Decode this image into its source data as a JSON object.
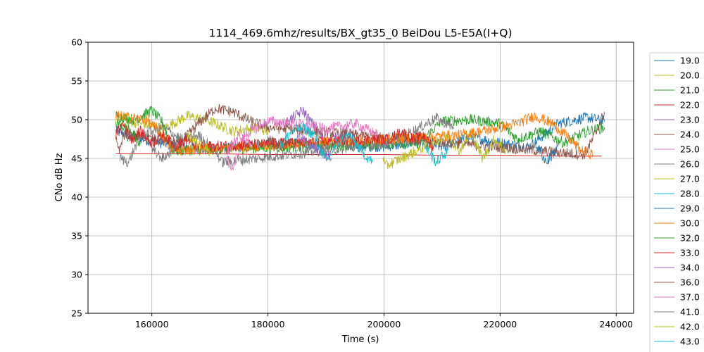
{
  "chart_data": {
    "type": "line",
    "title": "1114_469.6mhz/results/BX_gt35_0 BeiDou L5-E5A(I+Q)",
    "xlabel": "Time (s)",
    "ylabel": "CNo dB Hz",
    "xlim": [
      149000,
      243000
    ],
    "ylim": [
      25,
      60
    ],
    "xticks": [
      160000,
      180000,
      200000,
      220000,
      240000
    ],
    "yticks": [
      25,
      30,
      35,
      40,
      45,
      50,
      55,
      60
    ],
    "grid": true,
    "legend_position": "right",
    "series": [
      {
        "name": "19.0",
        "color": "#1f77b4",
        "x": [
          153800,
          160000,
          170000,
          180000,
          190000,
          200000,
          205000,
          210000,
          215000,
          220000,
          225000,
          230000,
          235000,
          238000
        ],
        "y": [
          48.5,
          47.2,
          46.0,
          47.0,
          46.8,
          46.5,
          47.0,
          46.5,
          47.8,
          47.0,
          46.5,
          49.5,
          50.3,
          49.8
        ]
      },
      {
        "name": "20.0",
        "color": "#bcbd22",
        "x": [
          153800,
          158000,
          162000,
          166000,
          170000,
          174000,
          178000,
          180000
        ],
        "y": [
          50.2,
          49.5,
          48.8,
          50.5,
          49.8,
          48.5,
          49.0,
          48.5
        ]
      },
      {
        "name": "21.0",
        "color": "#2ca02c",
        "x": [
          153800,
          157000,
          160000,
          162000,
          163500,
          206000,
          210000,
          215000,
          220000,
          223000,
          227000,
          231000,
          235000,
          238000
        ],
        "y": [
          50.5,
          50.0,
          51.2,
          49.5,
          46.0,
          47.0,
          49.8,
          50.0,
          49.5,
          47.5,
          48.5,
          47.0,
          48.5,
          49.0
        ]
      },
      {
        "name": "22.0",
        "color": "#d62728",
        "x": [
          153800,
          160000,
          170000,
          180000,
          190000,
          200000,
          210000,
          220000,
          230000,
          237500
        ],
        "y": [
          45.6,
          45.6,
          45.6,
          45.5,
          45.5,
          45.5,
          45.4,
          45.4,
          45.3,
          45.3
        ]
      },
      {
        "name": "23.0",
        "color": "#9467bd",
        "x": [
          183000,
          186000,
          190000,
          194000,
          196000
        ],
        "y": [
          49.5,
          51.2,
          47.0,
          48.5,
          46.0
        ]
      },
      {
        "name": "24.0",
        "color": "#8c564b",
        "x": [
          153800,
          154500,
          155000,
          165000,
          168000,
          171000,
          174000,
          177000,
          180000,
          234500,
          236000,
          238000
        ],
        "y": [
          47.5,
          46.0,
          48.0,
          47.0,
          49.5,
          51.5,
          51.0,
          49.8,
          49.0,
          45.5,
          47.5,
          51.0
        ]
      },
      {
        "name": "25.0",
        "color": "#e377c2",
        "x": [
          172500,
          174000,
          176000,
          180000,
          185000,
          190000,
          195000,
          199000
        ],
        "y": [
          45.0,
          43.8,
          48.0,
          49.8,
          49.5,
          48.8,
          49.5,
          48.0
        ]
      },
      {
        "name": "26.0",
        "color": "#7f7f7f",
        "x": [
          154500,
          156000,
          158000,
          162000,
          165000,
          168000,
          171000,
          172000,
          201000,
          205000,
          209000,
          212000
        ],
        "y": [
          45.0,
          44.5,
          48.0,
          49.0,
          47.5,
          48.0,
          46.0,
          44.5,
          47.0,
          48.5,
          50.2,
          49.0
        ]
      },
      {
        "name": "27.0",
        "color": "#bcbd22",
        "x": [
          199800,
          200200,
          211000,
          213000,
          215000,
          217000,
          219000,
          221000
        ],
        "y": [
          45.5,
          44.0,
          48.0,
          46.0,
          48.5,
          45.0,
          47.5,
          46.0
        ]
      },
      {
        "name": "28.0",
        "color": "#17becf",
        "x": [
          207000,
          209000,
          211000
        ],
        "y": [
          46.5,
          44.5,
          46.0
        ]
      },
      {
        "name": "29.0",
        "color": "#1f77b4",
        "x": [
          226000,
          228000,
          230000
        ],
        "y": [
          47.0,
          44.5,
          46.5
        ]
      },
      {
        "name": "30.0",
        "color": "#ff7f0e",
        "x": [
          153800,
          156000,
          159000,
          162000,
          163500,
          213000,
          217000,
          220000,
          223000,
          226000,
          229000,
          232000,
          234000,
          236000
        ],
        "y": [
          50.5,
          50.3,
          50.0,
          48.0,
          46.0,
          48.0,
          48.5,
          49.0,
          49.5,
          50.5,
          49.5,
          47.5,
          46.0,
          45.5
        ]
      },
      {
        "name": "32.0",
        "color": "#2ca02c",
        "x": [
          153800,
          156000,
          158000
        ],
        "y": [
          49.5,
          48.8,
          47.0
        ]
      },
      {
        "name": "33.0",
        "color": "#d62728",
        "x": [
          153800,
          155000,
          156500,
          158000,
          160000,
          162000,
          164000,
          166000,
          168000,
          201000,
          203000,
          205000,
          207000,
          208500
        ],
        "y": [
          48.0,
          49.5,
          47.5,
          48.5,
          47.0,
          48.0,
          46.5,
          47.5,
          46.5,
          47.5,
          48.5,
          47.5,
          48.0,
          46.0
        ]
      },
      {
        "name": "34.0",
        "color": "#9467bd",
        "x": [
          185000,
          187000,
          189000,
          191000
        ],
        "y": [
          48.0,
          47.0,
          46.0,
          45.0
        ]
      },
      {
        "name": "36.0",
        "color": "#8c564b",
        "x": [
          180000,
          182000,
          184000
        ],
        "y": [
          47.5,
          46.5,
          47.0
        ]
      },
      {
        "name": "37.0",
        "color": "#e377c2",
        "x": [
          173000,
          175000,
          177000
        ],
        "y": [
          46.0,
          48.0,
          47.0
        ]
      },
      {
        "name": "41.0",
        "color": "#7f7f7f",
        "x": [
          160000,
          162000,
          164000
        ],
        "y": [
          46.0,
          45.0,
          46.5
        ]
      },
      {
        "name": "42.0",
        "color": "#bcbd22",
        "x": [
          166000,
          168000,
          170000
        ],
        "y": [
          48.0,
          47.0,
          46.0
        ]
      },
      {
        "name": "43.0",
        "color": "#17becf",
        "x": [
          182000,
          184000,
          186000,
          188000,
          190000,
          192000,
          194000,
          196000,
          198000
        ],
        "y": [
          46.5,
          48.5,
          49.0,
          48.0,
          44.5,
          47.0,
          48.0,
          46.0,
          44.5
        ]
      }
    ]
  }
}
